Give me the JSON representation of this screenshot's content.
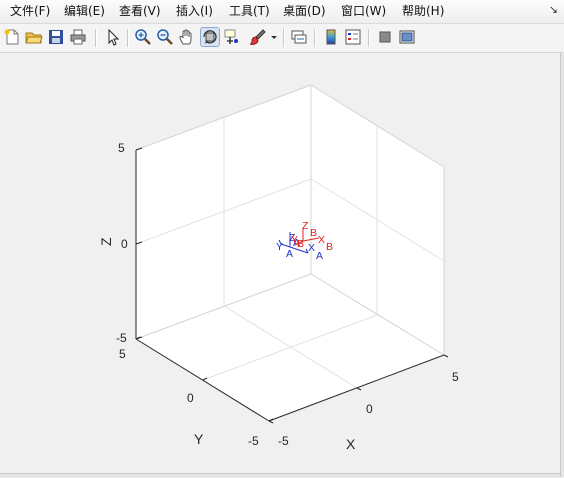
{
  "menu": {
    "items": [
      {
        "label": "文件(F)"
      },
      {
        "label": "编辑(E)"
      },
      {
        "label": "查看(V)"
      },
      {
        "label": "插入(I)"
      },
      {
        "label": "工具(T)"
      },
      {
        "label": "桌面(D)"
      },
      {
        "label": "窗口(W)"
      },
      {
        "label": "帮助(H)"
      }
    ],
    "dock_icon": "undock-arrow-icon"
  },
  "toolbar": {
    "icons": [
      "new-figure-icon",
      "open-file-icon",
      "save-icon",
      "print-icon",
      "edit-plot-arrow-icon",
      "zoom-in-icon",
      "zoom-out-icon",
      "pan-hand-icon",
      "rotate-3d-icon",
      "data-cursor-icon",
      "brush-icon",
      "brush-dropdown-icon",
      "link-plot-icon",
      "insert-colorbar-icon",
      "insert-legend-icon",
      "hide-plot-tools-icon",
      "show-plot-tools-icon"
    ],
    "active": "rotate-3d-icon"
  },
  "axes": {
    "xlabel": "X",
    "ylabel": "Y",
    "zlabel": "Z",
    "x_ticks": [
      "-5",
      "0",
      "5"
    ],
    "y_ticks": [
      "-5",
      "0",
      "5"
    ],
    "z_ticks": [
      "-5",
      "0",
      "5"
    ],
    "xlim": [
      -5,
      5
    ],
    "ylim": [
      -5,
      5
    ],
    "zlim": [
      -5,
      5
    ],
    "grid": true
  },
  "frames": [
    {
      "name": "A",
      "color": "#1f33c8",
      "labels": {
        "x": "X",
        "y": "Y",
        "z": "Z",
        "ex": "A",
        "ey": "A",
        "ez": "A"
      }
    },
    {
      "name": "B",
      "color": "#e02020",
      "labels": {
        "x": "X",
        "y": "Y",
        "z": "Z",
        "ex": "B",
        "ey": "B",
        "ez": "B"
      }
    }
  ]
}
